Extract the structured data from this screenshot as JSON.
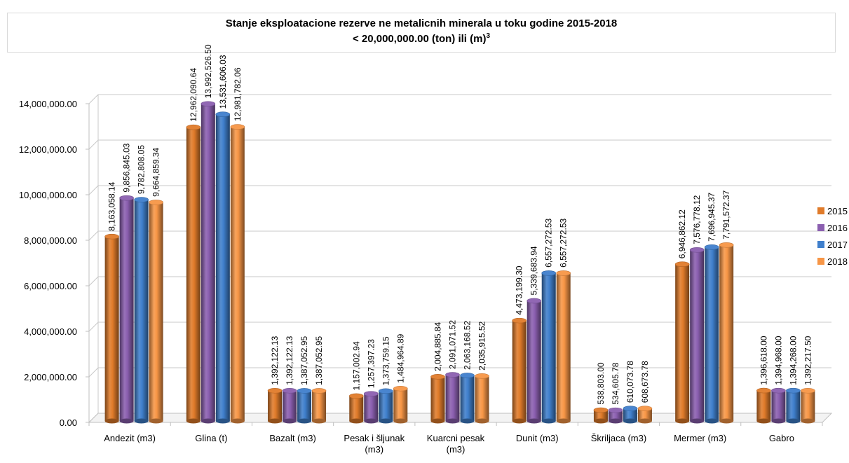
{
  "chart_data": {
    "type": "bar",
    "title": "Stanje eksploatacione rezerve ne metalicnih minerala u toku godine  2015-2018",
    "subtitle_main": "< 20,000,000.00 (ton) ili (m)",
    "subtitle_sup": "3",
    "categories": [
      "Andezit (m3)",
      "Glina  (t)",
      "Bazalt  (m3)",
      "Pesak i šljunak (m3)",
      "Kuarcni pesak (m3)",
      "Dunit (m3)",
      "Škriljaca  (m3)",
      "Mermer (m3)",
      "Gabro"
    ],
    "category_lines": [
      [
        "Andezit (m3)"
      ],
      [
        "Glina  (t)"
      ],
      [
        "Bazalt  (m3)"
      ],
      [
        "Pesak i šljunak",
        "(m3)"
      ],
      [
        "Kuarcni pesak",
        "(m3)"
      ],
      [
        "Dunit (m3)"
      ],
      [
        "Škriljaca  (m3)"
      ],
      [
        "Mermer (m3)"
      ],
      [
        "Gabro"
      ]
    ],
    "series": [
      {
        "name": "2015",
        "color": "#e07b2a",
        "values": [
          8163058.14,
          12962090.64,
          1392122.13,
          1157002.94,
          2004885.84,
          4473199.3,
          538803.0,
          6946862.12,
          1396618.0
        ],
        "labels": [
          "8,163,058.14",
          "12,962,090.64",
          "1,392,122.13",
          "1,157,002.94",
          "2,004,885.84",
          "4,473,199.30",
          "538,803.00",
          "6,946,862.12",
          "1,396,618.00"
        ]
      },
      {
        "name": "2016",
        "color": "#8b5fb0",
        "values": [
          9856845.03,
          13992526.5,
          1392122.13,
          1257397.23,
          2091071.52,
          5339683.94,
          534605.78,
          7576778.12,
          1394968.0
        ],
        "labels": [
          "9,856,845.03",
          "13,992,526.50",
          "1,392,122.13",
          "1,257,397.23",
          "2,091,071.52",
          "5,339,683.94",
          "534,605.78",
          "7,576,778.12",
          "1,394,968.00"
        ]
      },
      {
        "name": "2017",
        "color": "#3f7fcc",
        "values": [
          9782808.05,
          13531606.03,
          1387052.95,
          1373759.15,
          2063168.52,
          6557272.53,
          610073.78,
          7696945.37,
          1394268.0
        ],
        "labels": [
          "9,782,808.05",
          "13,531,606.03",
          "1,387,052.95",
          "1,373,759.15",
          "2,063,168.52",
          "6,557,272.53",
          "610,073.78",
          "7,696,945.37",
          "1,394,268.00"
        ]
      },
      {
        "name": "2018",
        "color": "#f79646",
        "values": [
          9664859.34,
          12981782.06,
          1387052.95,
          1484964.89,
          2035915.52,
          6557272.53,
          608673.78,
          7791572.37,
          1392217.5
        ],
        "labels": [
          "9,664,859.34",
          "12,981,782.06",
          "1,387,052.95",
          "1,484,964.89",
          "2,035,915.52",
          "6,557,272.53",
          "608,673.78",
          "7,791,572.37",
          "1,392,217.50"
        ]
      }
    ],
    "ylim": [
      0,
      14000000
    ],
    "yticks": [
      0,
      2000000,
      4000000,
      6000000,
      8000000,
      10000000,
      12000000,
      14000000
    ],
    "ytick_labels": [
      "0.00",
      "2,000,000.00",
      "4,000,000.00",
      "6,000,000.00",
      "8,000,000.00",
      "10,000,000.00",
      "12,000,000.00",
      "14,000,000.00"
    ],
    "grid": true,
    "legend_position": "right"
  }
}
